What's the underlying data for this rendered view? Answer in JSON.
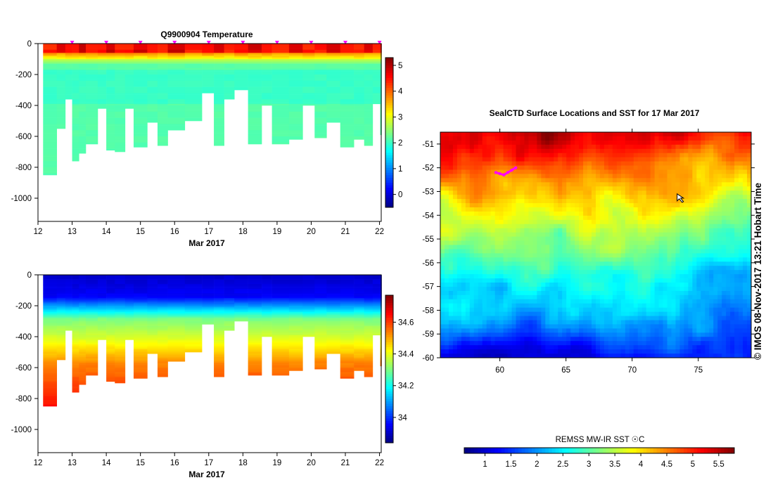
{
  "chart_data": [
    {
      "id": "temperature",
      "type": "heatmap",
      "title": "Q9900904  Temperature",
      "xlabel": "Mar 2017",
      "xlim": [
        12,
        22.05
      ],
      "ylim": [
        -1150,
        0
      ],
      "xticks": [
        12,
        13,
        14,
        15,
        16,
        17,
        18,
        19,
        20,
        21,
        22
      ],
      "yticks": [
        0,
        -200,
        -400,
        -600,
        -800,
        -1000
      ],
      "profile_markers_x": [
        13.0,
        14.0,
        15.0,
        16.0,
        17.0,
        18.0,
        19.0,
        20.0,
        21.0,
        22.0
      ],
      "profiles": [
        {
          "x0": 12.15,
          "x1": 12.55,
          "depth": 845
        },
        {
          "x0": 12.55,
          "x1": 12.8,
          "depth": 545
        },
        {
          "x0": 12.8,
          "x1": 13.0,
          "depth": 355
        },
        {
          "x0": 13.0,
          "x1": 13.2,
          "depth": 760
        },
        {
          "x0": 13.2,
          "x1": 13.4,
          "depth": 710
        },
        {
          "x0": 13.4,
          "x1": 13.75,
          "depth": 645
        },
        {
          "x0": 13.75,
          "x1": 14.0,
          "depth": 415
        },
        {
          "x0": 14.0,
          "x1": 14.25,
          "depth": 690
        },
        {
          "x0": 14.25,
          "x1": 14.55,
          "depth": 700
        },
        {
          "x0": 14.55,
          "x1": 14.8,
          "depth": 415
        },
        {
          "x0": 14.8,
          "x1": 15.2,
          "depth": 665
        },
        {
          "x0": 15.2,
          "x1": 15.5,
          "depth": 505
        },
        {
          "x0": 15.5,
          "x1": 15.8,
          "depth": 660
        },
        {
          "x0": 15.8,
          "x1": 16.3,
          "depth": 555
        },
        {
          "x0": 16.3,
          "x1": 16.8,
          "depth": 500
        },
        {
          "x0": 16.8,
          "x1": 17.15,
          "depth": 320
        },
        {
          "x0": 17.15,
          "x1": 17.45,
          "depth": 660
        },
        {
          "x0": 17.45,
          "x1": 17.75,
          "depth": 360
        },
        {
          "x0": 17.75,
          "x1": 18.15,
          "depth": 295
        },
        {
          "x0": 18.15,
          "x1": 18.55,
          "depth": 645
        },
        {
          "x0": 18.55,
          "x1": 18.85,
          "depth": 400
        },
        {
          "x0": 18.85,
          "x1": 19.35,
          "depth": 650
        },
        {
          "x0": 19.35,
          "x1": 19.75,
          "depth": 615
        },
        {
          "x0": 19.75,
          "x1": 20.1,
          "depth": 400
        },
        {
          "x0": 20.1,
          "x1": 20.45,
          "depth": 610
        },
        {
          "x0": 20.45,
          "x1": 20.85,
          "depth": 505
        },
        {
          "x0": 20.85,
          "x1": 21.25,
          "depth": 665
        },
        {
          "x0": 21.25,
          "x1": 21.55,
          "depth": 615
        },
        {
          "x0": 21.55,
          "x1": 21.8,
          "depth": 660
        },
        {
          "x0": 21.8,
          "x1": 22.02,
          "depth": 385
        },
        {
          "x0": 22.02,
          "x1": 22.06,
          "depth": 590
        }
      ],
      "colorbar": {
        "range": [
          -0.5,
          5.3
        ],
        "ticks": [
          0,
          1,
          2,
          3,
          4,
          5
        ],
        "colormap": "jet"
      }
    },
    {
      "id": "salinity",
      "type": "heatmap",
      "title": "",
      "xlabel": "Mar 2017",
      "xlim": [
        12,
        22.05
      ],
      "ylim": [
        -1150,
        0
      ],
      "xticks": [
        12,
        13,
        14,
        15,
        16,
        17,
        18,
        19,
        20,
        21,
        22
      ],
      "yticks": [
        0,
        -200,
        -400,
        -600,
        -800,
        -1000
      ],
      "colorbar": {
        "range": [
          33.84,
          34.77
        ],
        "ticks": [
          34,
          34.2,
          34.4,
          34.6
        ],
        "colormap": "jet"
      }
    },
    {
      "id": "sst_map",
      "type": "heatmap",
      "title": "SealCTD Surface Locations and SST for 17 Mar 2017",
      "xlim": [
        55.5,
        79.0
      ],
      "ylim": [
        -60,
        -50.5
      ],
      "xticks": [
        60,
        65,
        70,
        75
      ],
      "yticks": [
        -51,
        -52,
        -53,
        -54,
        -55,
        -56,
        -57,
        -58,
        -59,
        -60
      ],
      "track": {
        "color": "#ff00ff",
        "points": [
          [
            59.7,
            -52.2
          ],
          [
            60.0,
            -52.25
          ],
          [
            60.3,
            -52.3
          ],
          [
            60.6,
            -52.2
          ],
          [
            60.9,
            -52.1
          ],
          [
            61.2,
            -52.0
          ]
        ]
      },
      "current_location": [
        73.4,
        -53.1
      ],
      "colorbar": {
        "label": "REMSS MW-IR SST ☉C",
        "range": [
          0.6,
          5.8
        ],
        "ticks": [
          1,
          1.5,
          2,
          2.5,
          3,
          3.5,
          4,
          4.5,
          5,
          5.5
        ],
        "colormap": "jet"
      }
    }
  ],
  "stamp": "©  IMOS 08-Nov-2017 13:21 Hobart Time",
  "colors": {
    "marker": "#ff00ff",
    "axis": "#000000",
    "background": "#ffffff"
  }
}
